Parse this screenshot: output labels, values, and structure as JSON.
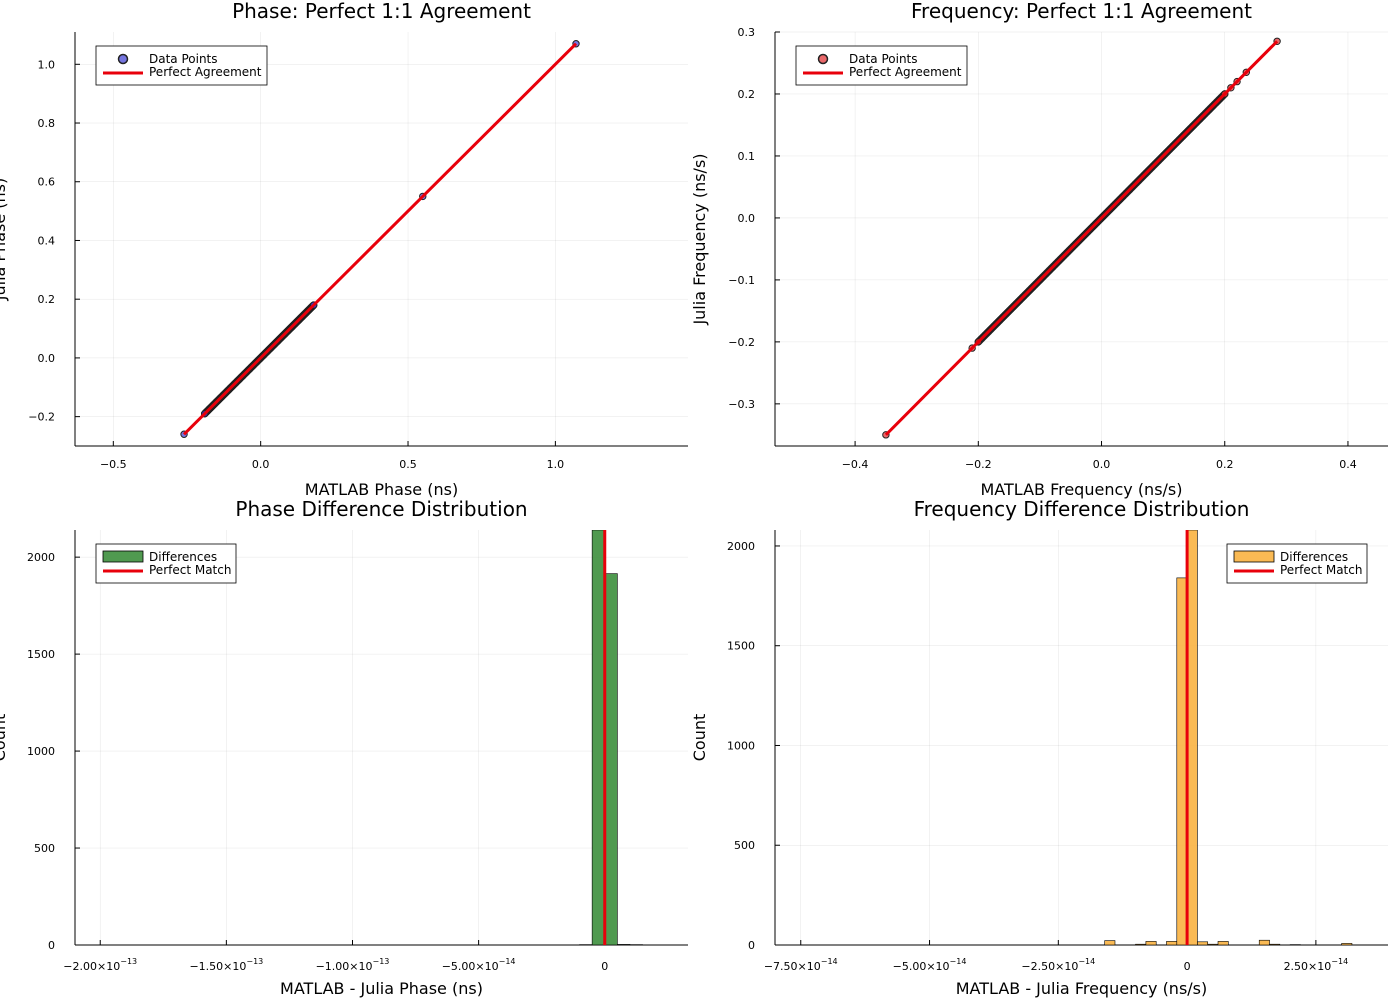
{
  "colors": {
    "phase_points": "#3b3bd1",
    "freq_points": "#e0282b",
    "point_stroke": "#222222",
    "phase_hist": "#3d8f3d",
    "freq_hist": "#f9b341",
    "agreement_line": "#e8000b"
  },
  "chart_data": [
    {
      "type": "scatter",
      "title": "Phase: Perfect 1:1 Agreement",
      "xlabel": "MATLAB Phase (ns)",
      "ylabel": "Julia Phase (ns)",
      "xlim": [
        -0.63,
        1.45
      ],
      "ylim": [
        -0.3,
        1.11
      ],
      "xticks": [
        -0.5,
        0.0,
        0.5,
        1.0
      ],
      "xtick_labels": [
        "−0.5",
        "0.0",
        "0.5",
        "1.0"
      ],
      "yticks": [
        -0.2,
        0.0,
        0.2,
        0.4,
        0.6,
        0.8,
        1.0
      ],
      "ytick_labels": [
        "−0.2",
        "0.0",
        "0.2",
        "0.4",
        "0.6",
        "0.8",
        "1.0"
      ],
      "grid": true,
      "legend_position": "top-left",
      "series": [
        {
          "name": "Data Points",
          "kind": "points",
          "dense_range": [
            -0.19,
            0.18
          ],
          "points": [
            [
              -0.26,
              -0.26
            ],
            [
              0.55,
              0.55
            ],
            [
              1.07,
              1.07
            ],
            [
              -0.19,
              -0.19
            ],
            [
              0.18,
              0.18
            ]
          ]
        },
        {
          "name": "Perfect Agreement",
          "kind": "line",
          "points": [
            [
              -0.26,
              -0.26
            ],
            [
              1.07,
              1.07
            ]
          ]
        }
      ]
    },
    {
      "type": "scatter",
      "title": "Frequency: Perfect 1:1 Agreement",
      "xlabel": "MATLAB Frequency (ns/s)",
      "ylabel": "Julia Frequency (ns/s)",
      "xlim": [
        -0.53,
        0.465
      ],
      "ylim": [
        -0.368,
        0.3
      ],
      "xticks": [
        -0.4,
        -0.2,
        0.0,
        0.2,
        0.4
      ],
      "xtick_labels": [
        "−0.4",
        "−0.2",
        "0.0",
        "0.2",
        "0.4"
      ],
      "yticks": [
        -0.3,
        -0.2,
        -0.1,
        0.0,
        0.1,
        0.2,
        0.3
      ],
      "ytick_labels": [
        "−0.3",
        "−0.2",
        "−0.1",
        "0.0",
        "0.1",
        "0.2",
        "0.3"
      ],
      "grid": true,
      "legend_position": "top-left",
      "series": [
        {
          "name": "Data Points",
          "kind": "points",
          "dense_range": [
            -0.2,
            0.2
          ],
          "points": [
            [
              -0.35,
              -0.35
            ],
            [
              -0.21,
              -0.21
            ],
            [
              0.285,
              0.285
            ],
            [
              0.235,
              0.235
            ],
            [
              0.22,
              0.22
            ],
            [
              0.21,
              0.21
            ],
            [
              -0.2,
              -0.2
            ],
            [
              0.2,
              0.2
            ]
          ]
        },
        {
          "name": "Perfect Agreement",
          "kind": "line",
          "points": [
            [
              -0.35,
              -0.35
            ],
            [
              0.285,
              0.285
            ]
          ]
        }
      ]
    },
    {
      "type": "bar",
      "title": "Phase Difference Distribution",
      "xlabel": "MATLAB - Julia Phase (ns)",
      "ylabel": "Count",
      "xlim": [
        -2.1e-13,
        3.3e-14
      ],
      "ylim": [
        0,
        2140
      ],
      "xticks": [
        -2e-13,
        -1.5e-13,
        -1e-13,
        -5e-14,
        0
      ],
      "xtick_labels": [
        [
          "−2.00×10",
          "−13"
        ],
        [
          "−1.50×10",
          "−13"
        ],
        [
          "−1.00×10",
          "−13"
        ],
        [
          "−5.00×10",
          "−14"
        ],
        [
          "0",
          ""
        ]
      ],
      "yticks": [
        0,
        500,
        1000,
        1500,
        2000
      ],
      "ytick_labels": [
        "0",
        "500",
        "1000",
        "1500",
        "2000"
      ],
      "grid": true,
      "legend_position": "top-left",
      "bin_width": 5e-15,
      "bins": [
        {
          "x0": -2e-13,
          "value": 1
        },
        {
          "x0": -1.95e-13,
          "value": 1
        },
        {
          "x0": -1.9e-13,
          "value": 1
        },
        {
          "x0": -1.5e-13,
          "value": 1
        },
        {
          "x0": -1e-13,
          "value": 1
        },
        {
          "x0": -5e-14,
          "value": 1
        },
        {
          "x0": -2e-14,
          "value": 1
        },
        {
          "x0": -1.5e-14,
          "value": 1
        },
        {
          "x0": -1e-14,
          "value": 2
        },
        {
          "x0": -5e-15,
          "value": 2140
        },
        {
          "x0": 0,
          "value": 1915
        },
        {
          "x0": 5e-15,
          "value": 3
        },
        {
          "x0": 1e-14,
          "value": 2
        },
        {
          "x0": 1.5e-14,
          "value": 1
        }
      ],
      "series": [
        {
          "name": "Differences"
        }
      ],
      "vline": {
        "name": "Perfect Match",
        "x": 0
      }
    },
    {
      "type": "bar",
      "title": "Frequency Difference Distribution",
      "xlabel": "MATLAB - Julia Frequency (ns/s)",
      "ylabel": "Count",
      "xlim": [
        -8e-14,
        3.9e-14
      ],
      "ylim": [
        0,
        2080
      ],
      "xticks": [
        -7.5e-14,
        -5e-14,
        -2.5e-14,
        0,
        2.5e-14
      ],
      "xtick_labels": [
        [
          "−7.50×10",
          "−14"
        ],
        [
          "−5.00×10",
          "−14"
        ],
        [
          "−2.50×10",
          "−14"
        ],
        [
          "0",
          ""
        ],
        [
          "2.50×10",
          "−14"
        ]
      ],
      "yticks": [
        0,
        500,
        1000,
        1500,
        2000
      ],
      "ytick_labels": [
        "0",
        "500",
        "1000",
        "1500",
        "2000"
      ],
      "grid": true,
      "legend_position": "top-right",
      "bin_width": 2e-15,
      "bins": [
        {
          "x0": -7.6e-14,
          "value": 1
        },
        {
          "x0": -6e-14,
          "value": 1
        },
        {
          "x0": -4e-14,
          "value": 1
        },
        {
          "x0": -3.2e-14,
          "value": 1
        },
        {
          "x0": -2.6e-14,
          "value": 1
        },
        {
          "x0": -2.2e-14,
          "value": 1
        },
        {
          "x0": -1.6e-14,
          "value": 22
        },
        {
          "x0": -1e-14,
          "value": 4
        },
        {
          "x0": -8e-15,
          "value": 18
        },
        {
          "x0": -4e-15,
          "value": 18
        },
        {
          "x0": -2e-15,
          "value": 1840
        },
        {
          "x0": 0,
          "value": 2080
        },
        {
          "x0": 2e-15,
          "value": 16
        },
        {
          "x0": 4e-15,
          "value": 4
        },
        {
          "x0": 6e-15,
          "value": 18
        },
        {
          "x0": 1.4e-14,
          "value": 24
        },
        {
          "x0": 1.6e-14,
          "value": 4
        },
        {
          "x0": 2e-14,
          "value": 2
        },
        {
          "x0": 3e-14,
          "value": 8
        }
      ],
      "series": [
        {
          "name": "Differences"
        }
      ],
      "vline": {
        "name": "Perfect Match",
        "x": 0
      }
    }
  ]
}
